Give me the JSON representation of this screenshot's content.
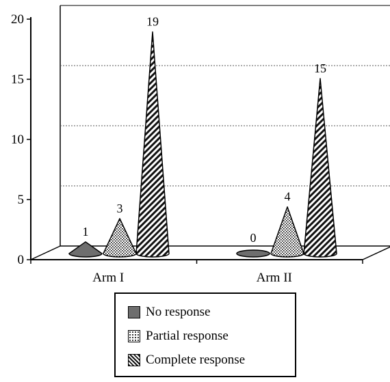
{
  "chart_data": {
    "type": "bar",
    "shape": "cone",
    "three_d": true,
    "categories": [
      "Arm I",
      "Arm II"
    ],
    "series": [
      {
        "name": "No response",
        "values": [
          1,
          0
        ],
        "pattern": "solid-dark-gray"
      },
      {
        "name": "Partial response",
        "values": [
          3,
          4
        ],
        "pattern": "dotted"
      },
      {
        "name": "Complete response",
        "values": [
          19,
          15
        ],
        "pattern": "diagonal-stripes"
      }
    ],
    "data_labels": [
      [
        "1",
        "0"
      ],
      [
        "3",
        "4"
      ],
      [
        "19",
        "15"
      ]
    ],
    "yticks": [
      0,
      5,
      10,
      15,
      20
    ],
    "ylim": [
      0,
      20
    ],
    "gridlines": [
      5,
      10,
      15
    ],
    "legend_position": "bottom",
    "colors": {
      "no_response": "#6e6e6e",
      "outline": "#000000",
      "grid": "#555555"
    }
  }
}
